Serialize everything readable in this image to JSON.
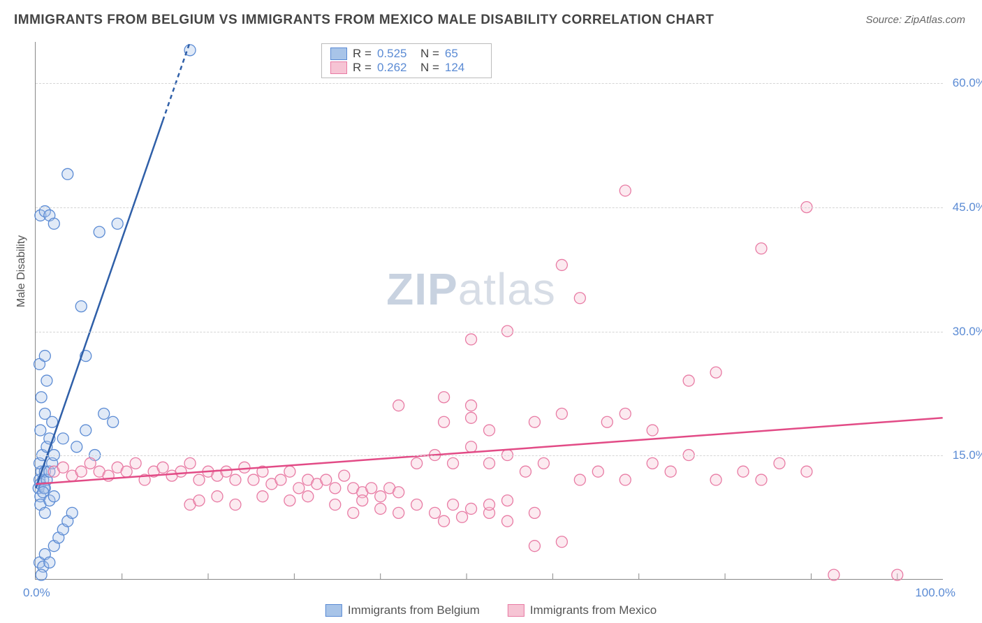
{
  "title": "IMMIGRANTS FROM BELGIUM VS IMMIGRANTS FROM MEXICO MALE DISABILITY CORRELATION CHART",
  "source": "Source: ZipAtlas.com",
  "ylabel": "Male Disability",
  "watermark_zip": "ZIP",
  "watermark_atlas": "atlas",
  "chart": {
    "type": "scatter-correlation",
    "background_color": "#ffffff",
    "grid_color": "#d5d5d5",
    "axis_color": "#888888",
    "xlim": [
      0,
      100
    ],
    "ylim": [
      0,
      65
    ],
    "x_ticks_label": {
      "min": "0.0%",
      "max": "100.0%"
    },
    "y_ticks": [
      {
        "v": 15,
        "label": "15.0%"
      },
      {
        "v": 30,
        "label": "30.0%"
      },
      {
        "v": 45,
        "label": "45.0%"
      },
      {
        "v": 60,
        "label": "60.0%"
      }
    ],
    "x_minor_tick_step": 9.5,
    "tick_label_color": "#5b8bd4",
    "tick_fontsize": 17,
    "marker_radius": 8,
    "marker_opacity": 0.35,
    "line_width": 2.5,
    "series": [
      {
        "name": "Immigrants from Belgium",
        "fill": "#a8c4e8",
        "stroke": "#5b8bd4",
        "line_color": "#2f5fa8",
        "R": "0.525",
        "N": "65",
        "trend": {
          "x1": 0,
          "y1": 11,
          "x2": 17,
          "y2": 65,
          "dashed_from_x": 14
        },
        "points": [
          [
            0.3,
            11
          ],
          [
            0.4,
            12
          ],
          [
            0.5,
            11.5
          ],
          [
            0.6,
            13
          ],
          [
            0.8,
            12
          ],
          [
            0.5,
            10
          ],
          [
            0.9,
            11
          ],
          [
            0.4,
            14
          ],
          [
            1.0,
            13
          ],
          [
            1.2,
            12
          ],
          [
            0.7,
            15
          ],
          [
            1.5,
            13
          ],
          [
            1.8,
            14
          ],
          [
            1.0,
            11
          ],
          [
            0.8,
            10.5
          ],
          [
            1.2,
            16
          ],
          [
            1.5,
            17
          ],
          [
            2.0,
            15
          ],
          [
            0.5,
            18
          ],
          [
            1.0,
            20
          ],
          [
            1.8,
            19
          ],
          [
            0.6,
            22
          ],
          [
            1.2,
            24
          ],
          [
            0.4,
            26
          ],
          [
            1.0,
            27
          ],
          [
            0.5,
            9
          ],
          [
            1.0,
            8
          ],
          [
            1.5,
            9.5
          ],
          [
            2.0,
            10
          ],
          [
            0.4,
            2
          ],
          [
            0.8,
            1.5
          ],
          [
            1.0,
            3
          ],
          [
            1.5,
            2
          ],
          [
            2.0,
            4
          ],
          [
            0.6,
            0.5
          ],
          [
            2.5,
            5
          ],
          [
            3.0,
            6
          ],
          [
            3.5,
            7
          ],
          [
            4.0,
            8
          ],
          [
            3.0,
            17
          ],
          [
            4.5,
            16
          ],
          [
            5.5,
            18
          ],
          [
            6.5,
            15
          ],
          [
            7.5,
            20
          ],
          [
            8.5,
            19
          ],
          [
            5.0,
            33
          ],
          [
            5.5,
            27
          ],
          [
            0.5,
            44
          ],
          [
            1.0,
            44.5
          ],
          [
            1.5,
            44
          ],
          [
            2.0,
            43
          ],
          [
            7.0,
            42
          ],
          [
            9.0,
            43
          ],
          [
            3.5,
            49
          ],
          [
            17,
            64
          ]
        ]
      },
      {
        "name": "Immigrants from Mexico",
        "fill": "#f6c4d4",
        "stroke": "#e87ba4",
        "line_color": "#e24b86",
        "R": "0.262",
        "N": "124",
        "trend": {
          "x1": 0,
          "y1": 11.5,
          "x2": 100,
          "y2": 19.5
        },
        "points": [
          [
            2,
            13
          ],
          [
            3,
            13.5
          ],
          [
            4,
            12.5
          ],
          [
            5,
            13
          ],
          [
            6,
            14
          ],
          [
            7,
            13
          ],
          [
            8,
            12.5
          ],
          [
            9,
            13.5
          ],
          [
            10,
            13
          ],
          [
            11,
            14
          ],
          [
            12,
            12
          ],
          [
            13,
            13
          ],
          [
            14,
            13.5
          ],
          [
            15,
            12.5
          ],
          [
            16,
            13
          ],
          [
            17,
            14
          ],
          [
            18,
            12
          ],
          [
            19,
            13
          ],
          [
            20,
            12.5
          ],
          [
            21,
            13
          ],
          [
            22,
            12
          ],
          [
            23,
            13.5
          ],
          [
            24,
            12
          ],
          [
            25,
            13
          ],
          [
            26,
            11.5
          ],
          [
            27,
            12
          ],
          [
            28,
            13
          ],
          [
            29,
            11
          ],
          [
            30,
            12
          ],
          [
            31,
            11.5
          ],
          [
            32,
            12
          ],
          [
            33,
            11
          ],
          [
            34,
            12.5
          ],
          [
            35,
            11
          ],
          [
            36,
            10.5
          ],
          [
            37,
            11
          ],
          [
            38,
            10
          ],
          [
            39,
            11
          ],
          [
            40,
            10.5
          ],
          [
            17,
            9
          ],
          [
            18,
            9.5
          ],
          [
            20,
            10
          ],
          [
            22,
            9
          ],
          [
            25,
            10
          ],
          [
            28,
            9.5
          ],
          [
            30,
            10
          ],
          [
            33,
            9
          ],
          [
            36,
            9.5
          ],
          [
            35,
            8
          ],
          [
            38,
            8.5
          ],
          [
            40,
            8
          ],
          [
            42,
            9
          ],
          [
            44,
            8
          ],
          [
            46,
            9
          ],
          [
            48,
            8.5
          ],
          [
            45,
            7
          ],
          [
            47,
            7.5
          ],
          [
            50,
            8
          ],
          [
            52,
            7
          ],
          [
            55,
            8
          ],
          [
            42,
            14
          ],
          [
            44,
            15
          ],
          [
            46,
            14
          ],
          [
            48,
            16
          ],
          [
            50,
            14
          ],
          [
            52,
            15
          ],
          [
            54,
            13
          ],
          [
            56,
            14
          ],
          [
            45,
            19
          ],
          [
            48,
            19.5
          ],
          [
            50,
            18
          ],
          [
            55,
            19
          ],
          [
            58,
            20
          ],
          [
            40,
            21
          ],
          [
            45,
            22
          ],
          [
            48,
            21
          ],
          [
            48,
            29
          ],
          [
            52,
            30
          ],
          [
            58,
            38
          ],
          [
            60,
            34
          ],
          [
            60,
            12
          ],
          [
            62,
            13
          ],
          [
            65,
            12
          ],
          [
            68,
            14
          ],
          [
            70,
            13
          ],
          [
            72,
            15
          ],
          [
            63,
            19
          ],
          [
            65,
            20
          ],
          [
            68,
            18
          ],
          [
            75,
            12
          ],
          [
            78,
            13
          ],
          [
            80,
            12
          ],
          [
            82,
            14
          ],
          [
            85,
            13
          ],
          [
            72,
            24
          ],
          [
            75,
            25
          ],
          [
            80,
            40
          ],
          [
            85,
            45
          ],
          [
            55,
            4
          ],
          [
            58,
            4.5
          ],
          [
            65,
            47
          ],
          [
            50,
            9
          ],
          [
            52,
            9.5
          ],
          [
            88,
            0.5
          ],
          [
            95,
            0.5
          ]
        ]
      }
    ]
  },
  "legend_bottom": [
    {
      "label": "Immigrants from Belgium",
      "fill": "#a8c4e8",
      "stroke": "#5b8bd4"
    },
    {
      "label": "Immigrants from Mexico",
      "fill": "#f6c4d4",
      "stroke": "#e87ba4"
    }
  ]
}
